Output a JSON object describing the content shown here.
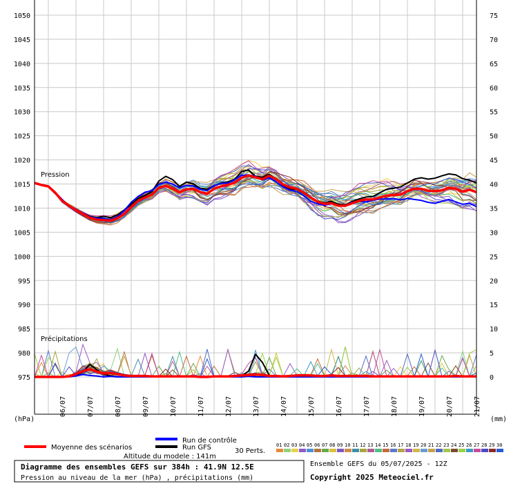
{
  "chart_data": {
    "type": "line",
    "left_axis": {
      "unit": "(hPa)",
      "min": 975,
      "max": 1050,
      "ticks": [
        "1050",
        "1045",
        "1040",
        "1035",
        "1030",
        "1025",
        "1020",
        "1015",
        "1010",
        "1005",
        "1000",
        "995",
        "990",
        "985",
        "980",
        "975"
      ]
    },
    "right_axis": {
      "unit": "(mm)",
      "min": 0,
      "max": 75,
      "ticks": [
        "75",
        "70",
        "65",
        "60",
        "55",
        "50",
        "45",
        "40",
        "35",
        "30",
        "25",
        "20",
        "15",
        "10",
        "5",
        "0"
      ]
    },
    "x_labels": [
      "06/07",
      "07/07",
      "08/07",
      "09/07",
      "10/07",
      "11/07",
      "12/07",
      "13/07",
      "14/07",
      "15/07",
      "16/07",
      "17/07",
      "18/07",
      "19/07",
      "20/07",
      "21/07"
    ],
    "x_days_start": 5.5,
    "x_days_end": 21.5,
    "panel_labels": {
      "pressure": "Pression",
      "precip": "Précipitations"
    },
    "pressure": {
      "x": [
        5.5,
        5.75,
        6,
        6.25,
        6.5,
        6.75,
        7,
        7.25,
        7.5,
        7.75,
        8,
        8.25,
        8.5,
        8.75,
        9,
        9.25,
        9.5,
        9.75,
        10,
        10.25,
        10.5,
        10.75,
        11,
        11.25,
        11.5,
        11.75,
        12,
        12.25,
        12.5,
        12.75,
        13,
        13.25,
        13.5,
        13.75,
        14,
        14.25,
        14.5,
        14.75,
        15,
        15.25,
        15.5,
        15.75,
        16,
        16.25,
        16.5,
        16.75,
        17,
        17.25,
        17.5,
        17.75,
        18,
        18.25,
        18.5,
        18.75,
        19,
        19.25,
        19.5,
        19.75,
        20,
        20.25,
        20.5,
        20.75,
        21,
        21.25,
        21.5
      ],
      "mean": [
        1015.2,
        1014.8,
        1014.5,
        1013.2,
        1011.5,
        1010.5,
        1009.6,
        1008.8,
        1008.0,
        1007.6,
        1007.5,
        1007.4,
        1007.9,
        1008.8,
        1010.2,
        1011.5,
        1012.2,
        1012.8,
        1014.2,
        1014.6,
        1014.0,
        1013.3,
        1013.9,
        1014.0,
        1013.3,
        1013.0,
        1014.0,
        1014.5,
        1014.8,
        1015.3,
        1016.3,
        1016.8,
        1016.4,
        1016.0,
        1016.7,
        1016.0,
        1014.9,
        1014.3,
        1014.0,
        1013.2,
        1012.2,
        1011.3,
        1010.9,
        1011.0,
        1010.5,
        1010.5,
        1011.0,
        1011.5,
        1011.8,
        1011.8,
        1012.2,
        1012.6,
        1012.7,
        1012.8,
        1013.5,
        1014.0,
        1014.0,
        1013.6,
        1013.5,
        1013.7,
        1014.2,
        1014.0,
        1013.4,
        1013.8,
        1013.3
      ],
      "control": [
        1015.3,
        1014.9,
        1014.6,
        1013.3,
        1011.8,
        1010.4,
        1009.8,
        1009.0,
        1008.2,
        1007.9,
        1007.9,
        1007.6,
        1008.2,
        1009.5,
        1011.2,
        1012.4,
        1013.3,
        1013.6,
        1014.9,
        1015.4,
        1015.0,
        1014.2,
        1014.7,
        1014.6,
        1013.9,
        1013.6,
        1014.7,
        1015.1,
        1015.2,
        1015.9,
        1016.8,
        1016.9,
        1016.6,
        1015.8,
        1016.3,
        1015.4,
        1014.4,
        1013.7,
        1013.4,
        1012.6,
        1011.4,
        1010.9,
        1010.6,
        1010.9,
        1010.5,
        1010.6,
        1011.2,
        1011.4,
        1011.3,
        1011.6,
        1011.9,
        1011.9,
        1012.0,
        1011.7,
        1012.0,
        1011.8,
        1011.6,
        1011.2,
        1011.0,
        1011.4,
        1011.8,
        1011.3,
        1010.8,
        1011.0,
        1010.3
      ],
      "gfs": [
        1015.2,
        1014.7,
        1014.4,
        1013.0,
        1011.6,
        1010.5,
        1009.7,
        1009.0,
        1008.3,
        1008.0,
        1008.3,
        1008.0,
        1008.6,
        1009.6,
        1010.8,
        1012.0,
        1012.6,
        1013.4,
        1015.6,
        1016.6,
        1015.9,
        1014.5,
        1015.4,
        1015.0,
        1014.1,
        1013.9,
        1014.6,
        1015.2,
        1015.4,
        1016.0,
        1017.6,
        1017.9,
        1016.6,
        1016.4,
        1017.0,
        1016.1,
        1014.7,
        1014.0,
        1013.8,
        1013.0,
        1012.1,
        1011.4,
        1011.1,
        1011.4,
        1010.8,
        1010.7,
        1011.4,
        1011.9,
        1012.3,
        1012.4,
        1013.2,
        1013.9,
        1014.1,
        1014.4,
        1015.2,
        1016.0,
        1016.3,
        1016.0,
        1016.2,
        1016.7,
        1017.1,
        1016.9,
        1016.1,
        1015.8,
        1015.2
      ]
    },
    "precip": {
      "x": [
        5.5,
        5.75,
        6,
        6.25,
        6.5,
        6.75,
        7,
        7.25,
        7.5,
        7.75,
        8,
        8.25,
        8.5,
        8.75,
        9,
        9.25,
        9.5,
        9.75,
        10,
        10.25,
        10.5,
        10.75,
        11,
        11.25,
        11.5,
        11.75,
        12,
        12.25,
        12.5,
        12.75,
        13,
        13.25,
        13.5,
        13.75,
        14,
        14.25,
        14.5,
        14.75,
        15,
        15.25,
        15.5,
        15.75,
        16,
        16.25,
        16.5,
        16.75,
        17,
        17.25,
        17.5,
        17.75,
        18,
        18.25,
        18.5,
        18.75,
        19,
        19.25,
        19.5,
        19.75,
        20,
        20.25,
        20.5,
        20.75,
        21,
        21.25,
        21.5
      ],
      "mean": [
        0,
        0,
        0,
        0,
        0,
        0.1,
        0.6,
        1.2,
        1.6,
        1.1,
        0.7,
        0.8,
        0.6,
        0.3,
        0.2,
        0.2,
        0.2,
        0.1,
        0.1,
        0.1,
        0.1,
        0.1,
        0.1,
        0.1,
        0,
        0,
        0.1,
        0.1,
        0.1,
        0.2,
        0.3,
        0.4,
        0.5,
        0.4,
        0.2,
        0.2,
        0.1,
        0.2,
        0.3,
        0.3,
        0.3,
        0.2,
        0.2,
        0.3,
        0.2,
        0.2,
        0.2,
        0.2,
        0.2,
        0.1,
        0.1,
        0.1,
        0.1,
        0.1,
        0.1,
        0.1,
        0.1,
        0.1,
        0.1,
        0.1,
        0.1,
        0.2,
        0.1,
        0.1,
        0.1
      ],
      "control": [
        0,
        0,
        0,
        0,
        0,
        0,
        0.2,
        0.5,
        0.3,
        0.2,
        0,
        0.1,
        0,
        0,
        0,
        0,
        0,
        0,
        0,
        0,
        0,
        0,
        0,
        0,
        0,
        0,
        0,
        0,
        0,
        0,
        0,
        0.1,
        0,
        0,
        0,
        0,
        0,
        0,
        0,
        0,
        0,
        0,
        0,
        0,
        0,
        0,
        0,
        0,
        0,
        0,
        0,
        0,
        0,
        0,
        0,
        0,
        0,
        0,
        0,
        0,
        0,
        0,
        0,
        0,
        0
      ],
      "gfs": [
        0,
        0,
        0,
        0,
        0,
        0,
        0.4,
        1.0,
        2.6,
        1.5,
        0.5,
        0.2,
        0,
        0,
        0,
        0,
        0,
        0,
        0,
        0,
        0,
        0,
        0,
        0,
        0,
        0,
        0,
        0,
        0,
        0,
        0.2,
        1.2,
        4.7,
        3.0,
        0.3,
        0,
        0,
        0,
        0,
        0,
        0,
        0,
        0,
        0,
        0,
        0,
        0,
        0,
        0,
        0,
        0,
        0,
        0,
        0,
        0,
        0,
        0,
        0,
        0,
        0,
        0,
        0,
        0,
        0,
        0
      ]
    },
    "ensemble_colors": [
      "#e8883a",
      "#8fd17b",
      "#e8d14a",
      "#8f59c7",
      "#4a90d9",
      "#b5733f",
      "#6aa84f",
      "#d7c33b",
      "#7e57c2",
      "#d18b4a",
      "#3f8fa8",
      "#a6a63b",
      "#b35a96",
      "#4fbf85",
      "#c76a3a",
      "#5d78c9",
      "#b5a34a",
      "#9c5ac7",
      "#d1b74a",
      "#6a9bd1",
      "#c7a24a",
      "#4f6ac7",
      "#a3c74a",
      "#7a4a30",
      "#9ad14a",
      "#3a9ac7",
      "#c74a9a",
      "#4a4ac7",
      "#8a2a2a",
      "#2a5ad1"
    ],
    "series_colors": {
      "mean": "#ff0000",
      "control": "#0000ff",
      "gfs": "#000000"
    }
  },
  "legend": {
    "mean_label": "Moyenne des scénarios",
    "control_label": "Run de contrôle",
    "gfs_label": "Run GFS",
    "perts_label": "30 Perts.",
    "pert_numbers": [
      "01",
      "02",
      "03",
      "04",
      "05",
      "06",
      "07",
      "08",
      "09",
      "10",
      "11",
      "12",
      "13",
      "14",
      "15",
      "16",
      "17",
      "18",
      "19",
      "20",
      "21",
      "22",
      "23",
      "24",
      "25",
      "26",
      "27",
      "28",
      "29",
      "30"
    ]
  },
  "footer": {
    "altitude": "Altitude du modele : 141m",
    "title_line": "Diagramme des ensembles GEFS sur 384h : 41.9N 12.5E",
    "subtitle_line": "Pression au niveau de la mer (hPa) , précipitations (mm)",
    "run_info": "Ensemble GEFS du 05/07/2025 - 12Z",
    "copyright": "Copyright 2025 Meteociel.fr"
  }
}
